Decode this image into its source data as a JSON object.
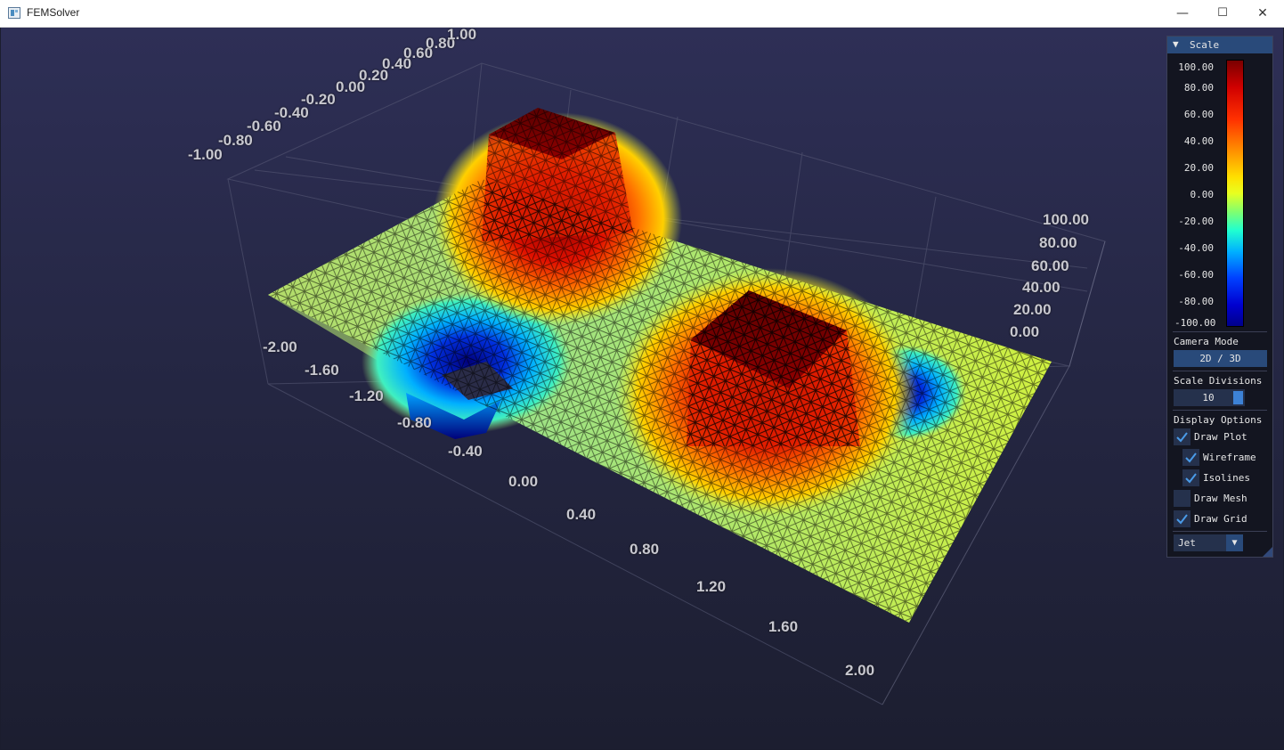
{
  "window": {
    "title": "FEMSolver",
    "minimize": "—",
    "maximize": "☐",
    "close": "✕"
  },
  "plot": {
    "y_axis_ticks": [
      "-1.00",
      "-0.80",
      "-0.60",
      "-0.40",
      "-0.20",
      "0.00",
      "0.20",
      "0.40",
      "0.60",
      "0.80",
      "1.00"
    ],
    "x_axis_ticks": [
      "-2.00",
      "-1.60",
      "-1.20",
      "-0.80",
      "-0.40",
      "0.00",
      "0.40",
      "0.80",
      "1.20",
      "1.60",
      "2.00"
    ],
    "z_axis_ticks": [
      "0.00",
      "20.00",
      "40.00",
      "60.00",
      "80.00",
      "100.00"
    ]
  },
  "panel": {
    "header": "Scale",
    "scale_ticks": [
      "100.00",
      "80.00",
      "60.00",
      "40.00",
      "20.00",
      "0.00",
      "-20.00",
      "-40.00",
      "-60.00",
      "-80.00",
      "-100.00"
    ],
    "camera_mode_label": "Camera Mode",
    "camera_mode_button": "2D / 3D",
    "scale_divisions_label": "Scale Divisions",
    "scale_divisions_value": "10",
    "display_options_label": "Display Options",
    "options": [
      {
        "label": "Draw Plot",
        "checked": true
      },
      {
        "label": "Wireframe",
        "checked": true
      },
      {
        "label": "Isolines",
        "checked": true
      },
      {
        "label": "Draw Mesh",
        "checked": false
      },
      {
        "label": "Draw Grid",
        "checked": true
      }
    ],
    "colormap": "Jet"
  },
  "colors": {
    "accent": "#294a7a",
    "check": "#4a9be8",
    "background": "#252744"
  }
}
